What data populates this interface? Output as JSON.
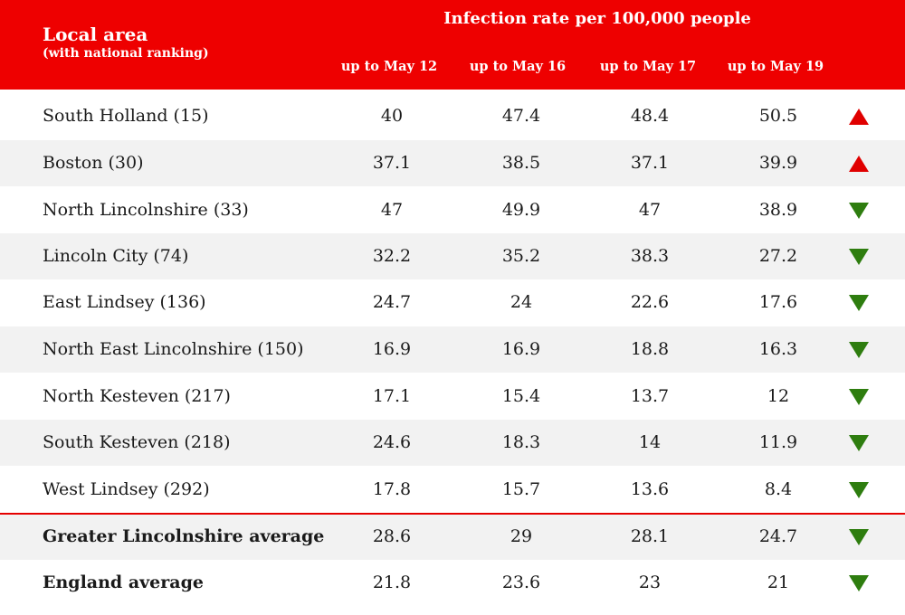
{
  "header": {
    "area_title": "Local area",
    "area_subtitle": "(with national ranking)",
    "rate_title": "Infection rate per 100,000 people",
    "columns": [
      "up to May 12",
      "up to May 16",
      "up to May 17",
      "up to May 19"
    ]
  },
  "rows": [
    {
      "name": "South Holland (15)",
      "values": [
        "40",
        "47.4",
        "48.4",
        "50.5"
      ],
      "trend": "up"
    },
    {
      "name": "Boston (30)",
      "values": [
        "37.1",
        "38.5",
        "37.1",
        "39.9"
      ],
      "trend": "up"
    },
    {
      "name": "North Lincolnshire (33)",
      "values": [
        "47",
        "49.9",
        "47",
        "38.9"
      ],
      "trend": "down"
    },
    {
      "name": "Lincoln City (74)",
      "values": [
        "32.2",
        "35.2",
        "38.3",
        "27.2"
      ],
      "trend": "down"
    },
    {
      "name": "East Lindsey (136)",
      "values": [
        "24.7",
        "24",
        "22.6",
        "17.6"
      ],
      "trend": "down"
    },
    {
      "name": "North East Lincolnshire (150)",
      "values": [
        "16.9",
        "16.9",
        "18.8",
        "16.3"
      ],
      "trend": "down"
    },
    {
      "name": "North Kesteven (217)",
      "values": [
        "17.1",
        "15.4",
        "13.7",
        "12"
      ],
      "trend": "down"
    },
    {
      "name": "South Kesteven (218)",
      "values": [
        "24.6",
        "18.3",
        "14",
        "11.9"
      ],
      "trend": "down"
    },
    {
      "name": "West Lindsey (292)",
      "values": [
        "17.8",
        "15.7",
        "13.6",
        "8.4"
      ],
      "trend": "down"
    }
  ],
  "summary_rows": [
    {
      "name": "Greater Lincolnshire average",
      "values": [
        "28.6",
        "29",
        "28.1",
        "24.7"
      ],
      "trend": "down"
    },
    {
      "name": "England average",
      "values": [
        "21.8",
        "23.6",
        "23",
        "21"
      ],
      "trend": "down"
    }
  ],
  "colors": {
    "header_bg": "#ee0000",
    "up_arrow": "#e00000",
    "down_arrow": "#2e7d0f",
    "row_shade": "#f2f2f2"
  },
  "icons": {
    "up": "triangle-up-icon",
    "down": "triangle-down-icon"
  }
}
